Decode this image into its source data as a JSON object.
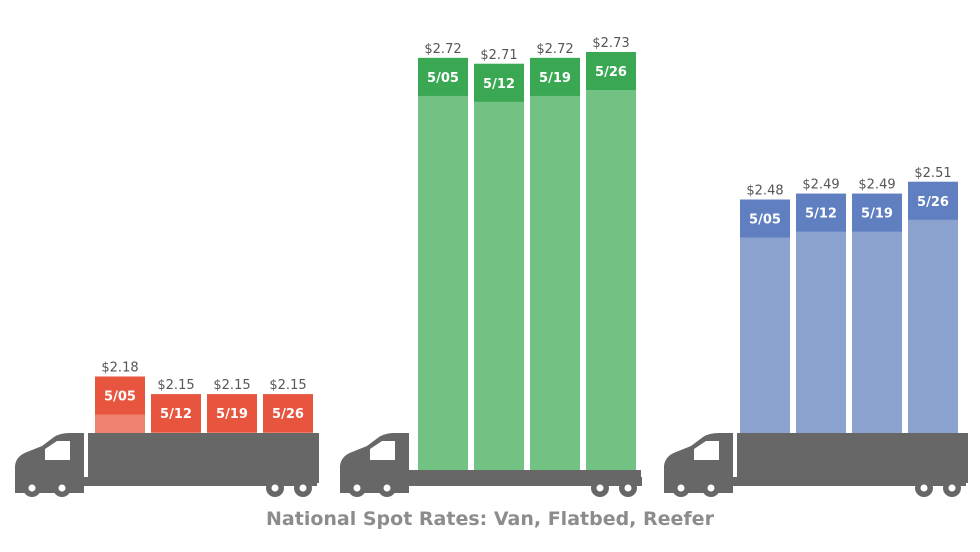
{
  "chart_data": [
    {
      "type": "bar",
      "categories": [
        "5/05",
        "5/12",
        "5/19",
        "5/26"
      ],
      "values": [
        2.18,
        2.15,
        2.15,
        2.15
      ],
      "value_labels": [
        "$2.18",
        "$2.15",
        "$2.15",
        "$2.15"
      ],
      "trailer": "box",
      "colors": {
        "body": "#ee826e",
        "cap": "#e8553f"
      }
    },
    {
      "type": "bar",
      "categories": [
        "5/05",
        "5/12",
        "5/19",
        "5/26"
      ],
      "values": [
        2.72,
        2.71,
        2.72,
        2.73
      ],
      "value_labels": [
        "$2.72",
        "$2.71",
        "$2.72",
        "$2.73"
      ],
      "trailer": "flatbed",
      "colors": {
        "body": "#71c283",
        "cap": "#3aa852"
      }
    },
    {
      "type": "bar",
      "categories": [
        "5/05",
        "5/12",
        "5/19",
        "5/26"
      ],
      "values": [
        2.48,
        2.49,
        2.49,
        2.51
      ],
      "value_labels": [
        "$2.48",
        "$2.49",
        "$2.49",
        "$2.51"
      ],
      "trailer": "box",
      "colors": {
        "body": "#8ba2cf",
        "cap": "#5f7fc0"
      }
    }
  ],
  "title": "National Spot Rates: Van, Flatbed, Reefer",
  "colors": {
    "truck": "#676767",
    "title": "#8c8c8c",
    "value_label": "#555555",
    "date_label": "#ffffff"
  }
}
